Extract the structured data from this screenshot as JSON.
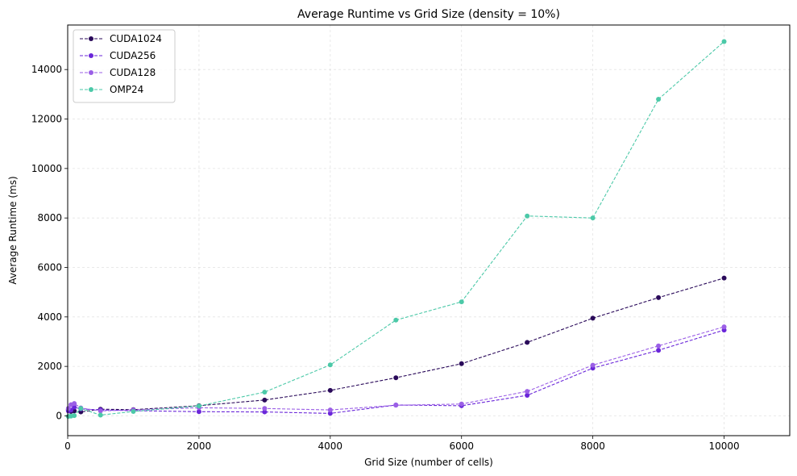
{
  "chart_data": {
    "type": "line",
    "title": "Average Runtime vs Grid Size (density = 10%)",
    "xlabel": "Grid Size (number of cells)",
    "ylabel": "Average Runtime (ms)",
    "xlim": [
      0,
      11000
    ],
    "ylim": [
      -800,
      15800
    ],
    "xticks": [
      0,
      2000,
      4000,
      6000,
      8000,
      10000
    ],
    "yticks": [
      0,
      2000,
      4000,
      6000,
      8000,
      10000,
      12000,
      14000
    ],
    "grid": true,
    "legend_position": "top-left",
    "series": [
      {
        "name": "CUDA1024",
        "color": "#2a0a5a",
        "x": [
          10,
          50,
          100,
          200,
          500,
          1000,
          2000,
          3000,
          4000,
          5000,
          6000,
          7000,
          8000,
          9000,
          10000
        ],
        "y": [
          250,
          180,
          200,
          160,
          270,
          250,
          410,
          640,
          1030,
          1540,
          2110,
          2970,
          3950,
          4780,
          5570
        ]
      },
      {
        "name": "CUDA256",
        "color": "#6a26d9",
        "x": [
          10,
          50,
          100,
          200,
          500,
          1000,
          2000,
          3000,
          4000,
          5000,
          6000,
          7000,
          8000,
          9000,
          10000
        ],
        "y": [
          200,
          230,
          350,
          280,
          240,
          210,
          170,
          160,
          100,
          440,
          410,
          830,
          1930,
          2650,
          3470
        ]
      },
      {
        "name": "CUDA128",
        "color": "#9b5fe6",
        "x": [
          10,
          50,
          100,
          200,
          500,
          1000,
          2000,
          3000,
          4000,
          5000,
          6000,
          7000,
          8000,
          9000,
          10000
        ],
        "y": [
          300,
          450,
          500,
          320,
          200,
          240,
          330,
          300,
          240,
          430,
          480,
          990,
          2050,
          2830,
          3600
        ]
      },
      {
        "name": "OMP24",
        "color": "#4cc9a8",
        "x": [
          10,
          50,
          100,
          200,
          500,
          1000,
          2000,
          3000,
          4000,
          5000,
          6000,
          7000,
          8000,
          9000,
          10000
        ],
        "y": [
          -20,
          -10,
          10,
          300,
          30,
          180,
          400,
          960,
          2060,
          3870,
          4610,
          8080,
          8000,
          12800,
          15130
        ]
      }
    ]
  }
}
